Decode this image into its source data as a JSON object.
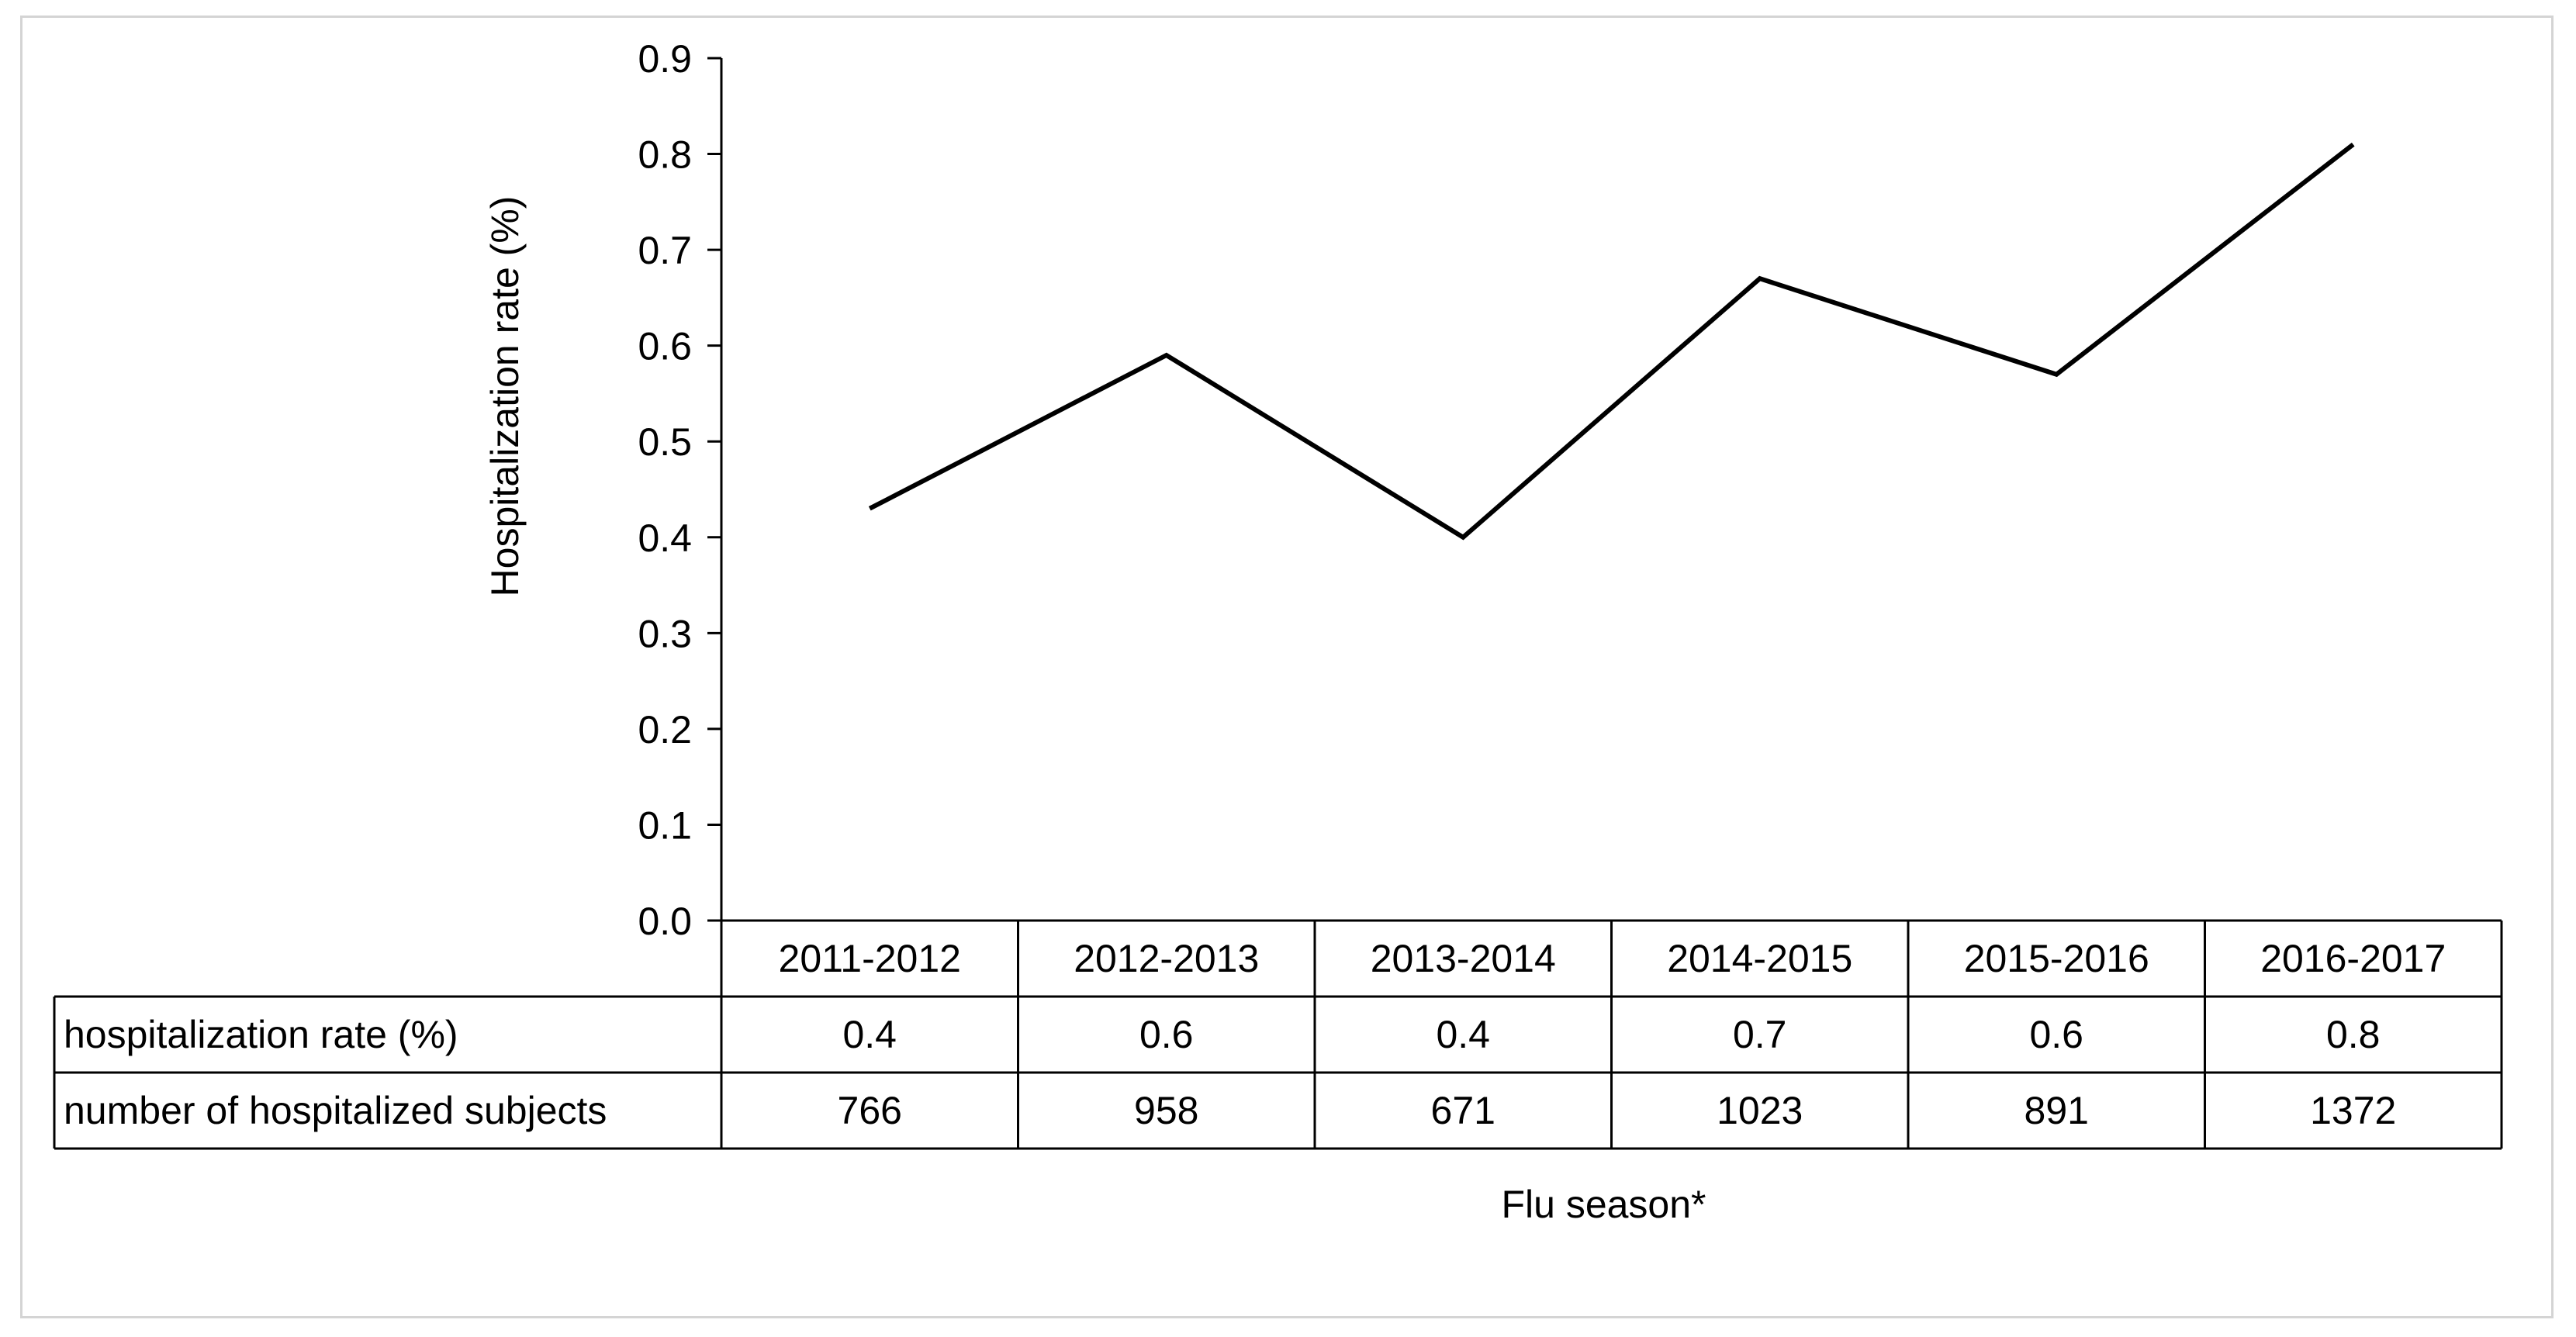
{
  "chart_data": {
    "type": "line",
    "title": "",
    "xlabel": "Flu season*",
    "ylabel": "Hospitalization rate (%)",
    "ylim": [
      0,
      0.9
    ],
    "yticks": [
      "0.0",
      "0.1",
      "0.2",
      "0.3",
      "0.4",
      "0.5",
      "0.6",
      "0.7",
      "0.8",
      "0.9"
    ],
    "categories": [
      "2011-2012",
      "2012-2013",
      "2013-2014",
      "2014-2015",
      "2015-2016",
      "2016-2017"
    ],
    "series": [
      {
        "values": [
          0.43,
          0.59,
          0.4,
          0.67,
          0.57,
          0.81
        ]
      }
    ],
    "grid": false,
    "legend": "none",
    "line_color": "#000000",
    "table": {
      "rows": [
        {
          "label": "hospitalization rate (%)",
          "values": [
            "0.4",
            "0.6",
            "0.4",
            "0.7",
            "0.6",
            "0.8"
          ]
        },
        {
          "label": "number of hospitalized subjects",
          "values": [
            "766",
            "958",
            "671",
            "1023",
            "891",
            "1372"
          ]
        }
      ]
    }
  }
}
